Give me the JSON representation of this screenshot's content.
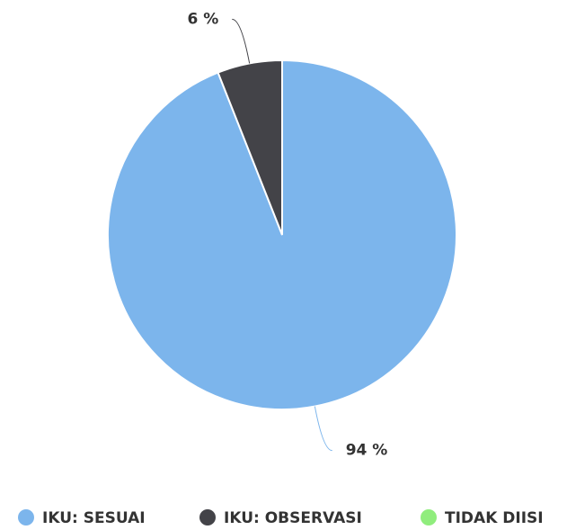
{
  "chart_data": {
    "type": "pie",
    "categories": [
      "IKU: SESUAI",
      "IKU: OBSERVASI",
      "TIDAK DIISI"
    ],
    "values": [
      94,
      6,
      0
    ],
    "value_labels": [
      "94 %",
      "6 %",
      null
    ],
    "colors": [
      "#7cb5ec",
      "#434348",
      "#90ed7d"
    ]
  }
}
